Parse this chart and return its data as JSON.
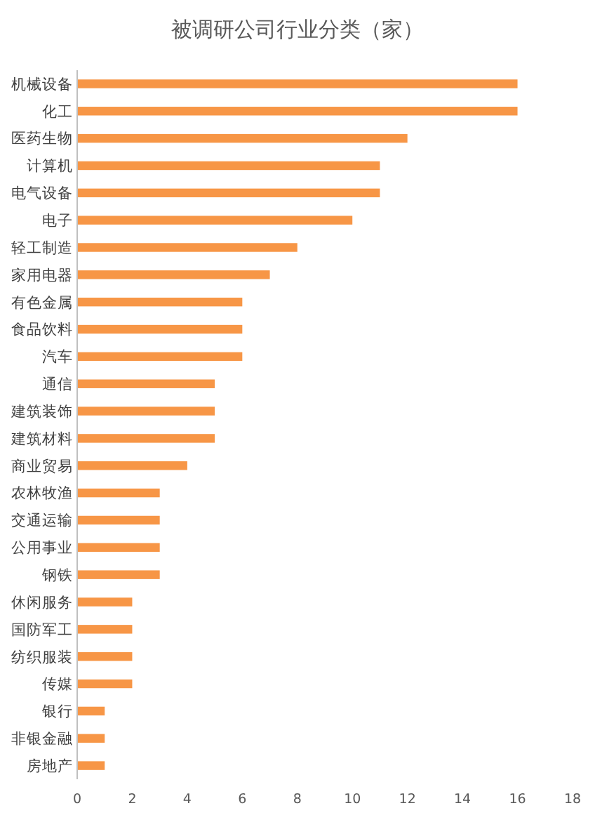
{
  "chart_data": {
    "type": "bar",
    "orientation": "horizontal",
    "title": "被调研公司行业分类（家）",
    "categories": [
      "机械设备",
      "化工",
      "医药生物",
      "计算机",
      "电气设备",
      "电子",
      "轻工制造",
      "家用电器",
      "有色金属",
      "食品饮料",
      "汽车",
      "通信",
      "建筑装饰",
      "建筑材料",
      "商业贸易",
      "农林牧渔",
      "交通运输",
      "公用事业",
      "钢铁",
      "休闲服务",
      "国防军工",
      "纺织服装",
      "传媒",
      "银行",
      "非银金融",
      "房地产"
    ],
    "values": [
      16,
      16,
      12,
      11,
      11,
      10,
      8,
      7,
      6,
      6,
      6,
      5,
      5,
      5,
      4,
      3,
      3,
      3,
      3,
      2,
      2,
      2,
      2,
      1,
      1,
      1
    ],
    "color": "#f79646",
    "xlim": [
      0,
      18
    ],
    "xticks": [
      0,
      2,
      4,
      6,
      8,
      10,
      12,
      14,
      16,
      18
    ],
    "grid": false
  }
}
